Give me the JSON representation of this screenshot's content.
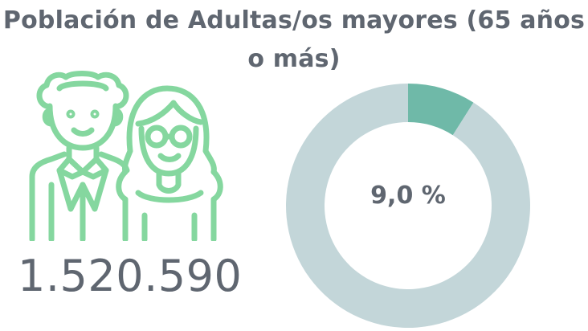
{
  "title": "Población de Adultas/os mayores (65 años o más)",
  "population_count": "1.520.590",
  "icon": "elderly-couple-icon",
  "colors": {
    "text": "#5f6670",
    "icon_stroke": "#85d79f",
    "donut_highlight": "#6fb9a8",
    "donut_rest": "#c3d6d9"
  },
  "chart_data": {
    "type": "pie",
    "style": "donut",
    "center_label": "9,0 %",
    "slices": [
      {
        "value": 9.0
      },
      {
        "value": 91.0
      }
    ]
  }
}
